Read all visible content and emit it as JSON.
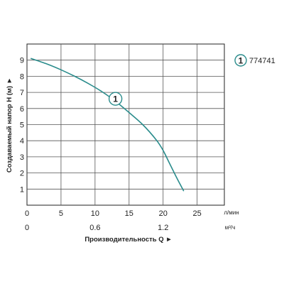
{
  "chart_data": {
    "type": "line",
    "xlim": [
      0,
      29
    ],
    "ylim": [
      0,
      10
    ],
    "x_ticks": [
      0,
      5,
      10,
      15,
      20,
      25
    ],
    "y_ticks": [
      1,
      2,
      3,
      4,
      5,
      6,
      7,
      8,
      9
    ],
    "x_unit": "л/мин",
    "secondary_x_ticks": [
      {
        "value": 0,
        "label": "0"
      },
      {
        "value": 10,
        "label": "0.6"
      },
      {
        "value": 20,
        "label": "1.2"
      }
    ],
    "secondary_x_unit": "м³/ч",
    "xlabel": "Производительность Q ►",
    "ylabel": "Создаваемый напор H (м) ►",
    "grid": true,
    "legend_position": "top-right",
    "colors": {
      "series": "#2a8c8c",
      "grid": "#555555",
      "axis": "#222222"
    },
    "series": [
      {
        "name": "774741",
        "marker_label": "1",
        "marker_at": [
          13,
          6.6
        ],
        "x": [
          0.6,
          3,
          5,
          7,
          9,
          11,
          13,
          15,
          17,
          19,
          20,
          21,
          22,
          23
        ],
        "y": [
          9.1,
          8.75,
          8.4,
          8.0,
          7.55,
          7.05,
          6.45,
          5.75,
          5.0,
          4.05,
          3.4,
          2.55,
          1.7,
          0.9
        ]
      }
    ]
  }
}
